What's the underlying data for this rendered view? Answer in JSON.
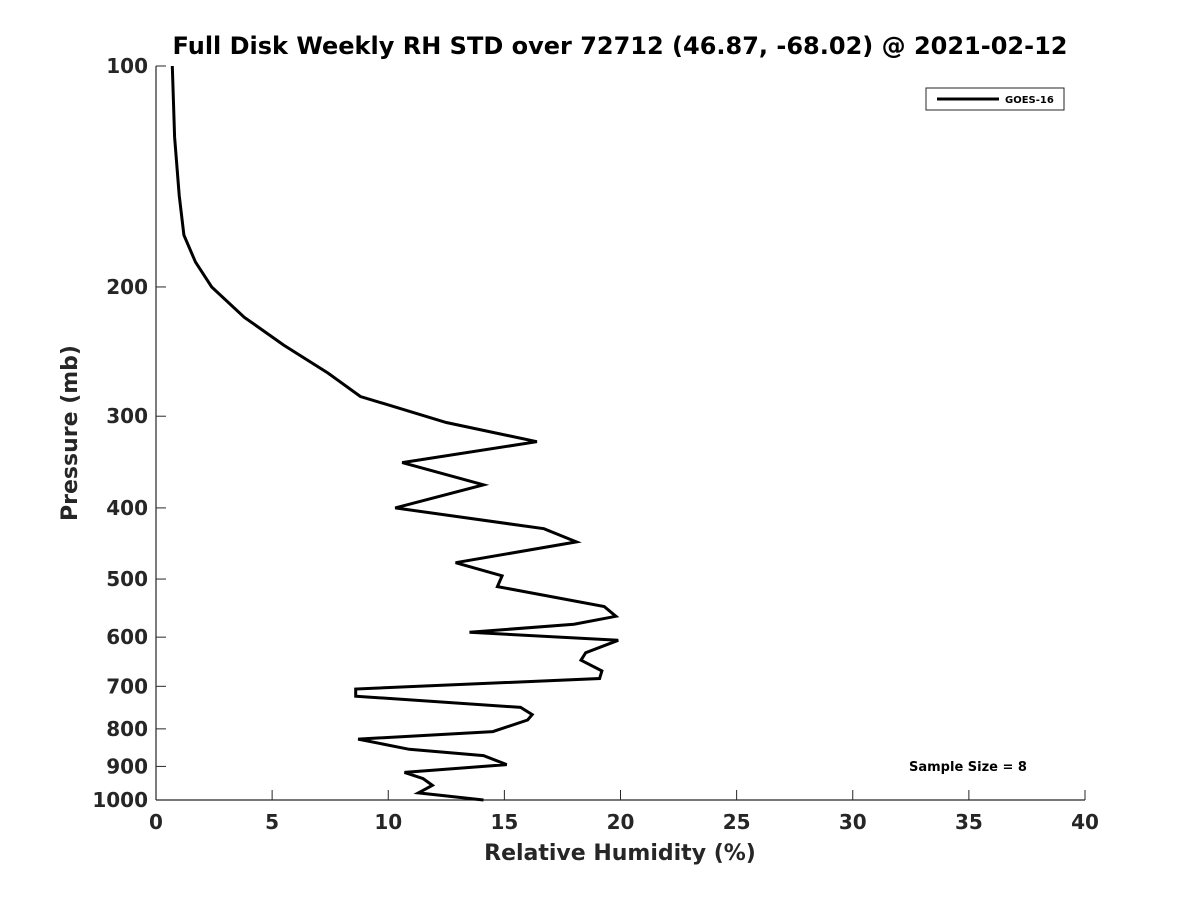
{
  "chart_data": {
    "type": "line",
    "title": "Full Disk Weekly RH STD over 72712 (46.87, -68.02) @ 2021-02-12",
    "xlabel": "Relative Humidity (%)",
    "ylabel": "Pressure (mb)",
    "xlim": [
      0,
      40
    ],
    "ylim": [
      100,
      1000
    ],
    "y_scale": "log",
    "y_reversed": true,
    "xticks": [
      0,
      5,
      10,
      15,
      20,
      25,
      30,
      35,
      40
    ],
    "yticks": [
      100,
      200,
      300,
      400,
      500,
      600,
      700,
      800,
      900,
      1000
    ],
    "grid": false,
    "legend_position": "top-right",
    "annotation": "Sample Size = 8",
    "series": [
      {
        "name": "GOES-16",
        "color": "#000000",
        "x": [
          0.7,
          0.8,
          1.0,
          1.2,
          1.7,
          2.4,
          3.8,
          5.5,
          7.4,
          8.8,
          12.5,
          16.4,
          10.6,
          14.1,
          10.3,
          16.7,
          18.1,
          12.9,
          14.9,
          14.7,
          19.3,
          19.8,
          18.0,
          13.5,
          19.9,
          18.5,
          18.3,
          19.2,
          19.1,
          8.6,
          8.6,
          15.7,
          16.2,
          16.0,
          14.5,
          8.7,
          10.9,
          14.1,
          15.1,
          10.7,
          11.5,
          11.9,
          11.3,
          14.1
        ],
        "y": [
          100,
          125,
          150,
          170,
          185,
          200,
          220,
          240,
          262,
          282,
          306,
          325,
          347,
          372,
          400,
          427,
          445,
          475,
          495,
          512,
          545,
          562,
          576,
          591,
          606,
          630,
          645,
          667,
          683,
          706,
          722,
          748,
          765,
          778,
          807,
          826,
          853,
          870,
          895,
          917,
          935,
          955,
          978,
          1000
        ]
      }
    ]
  }
}
